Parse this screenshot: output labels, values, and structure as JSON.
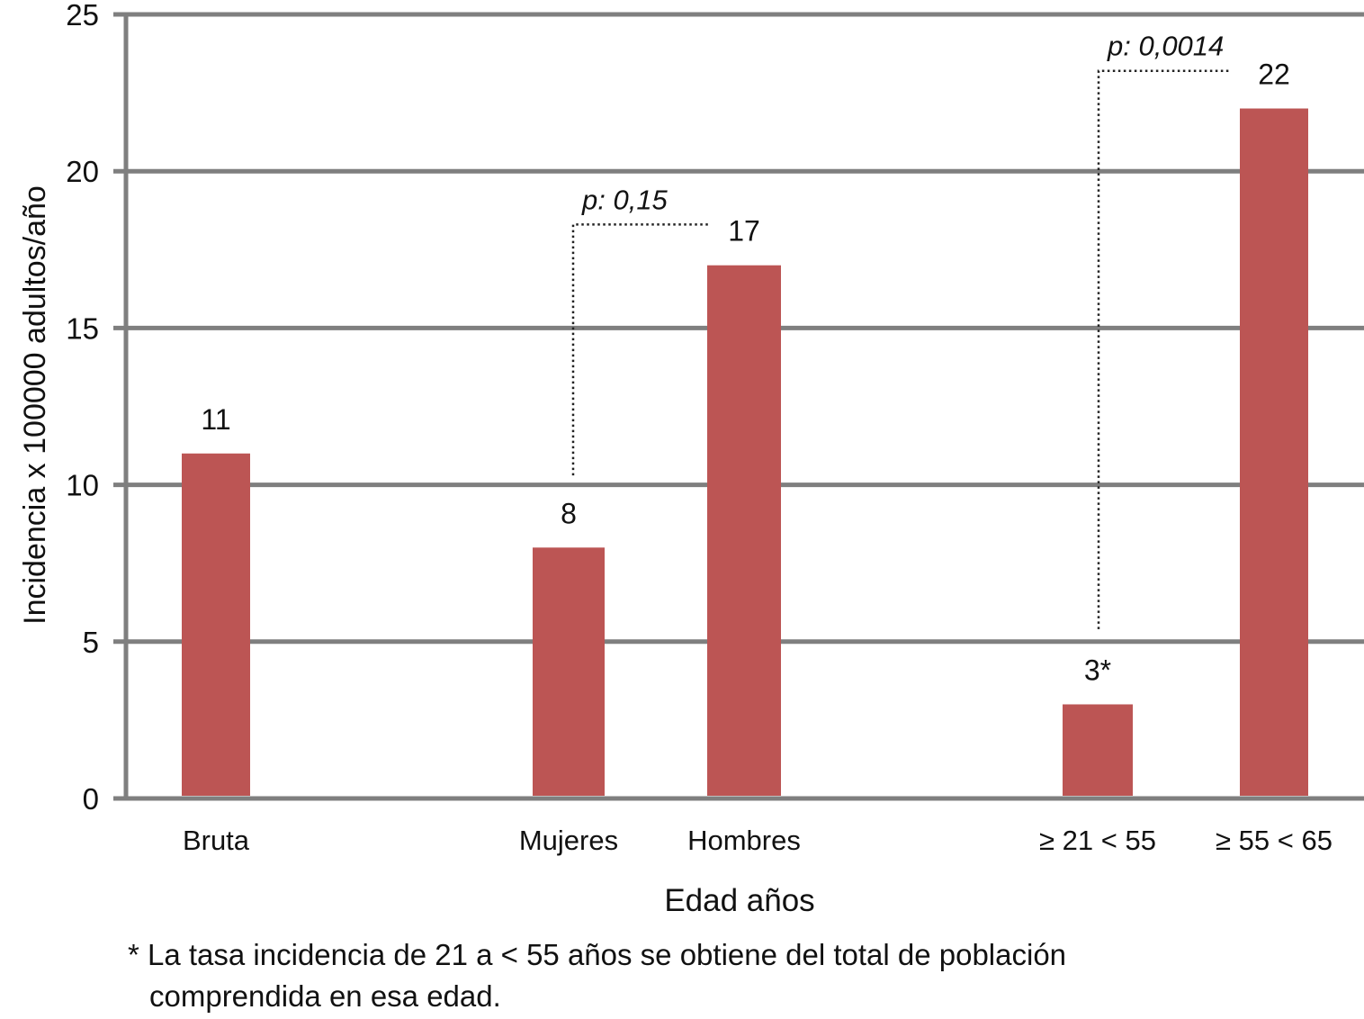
{
  "chart_data": {
    "type": "bar",
    "categories": [
      "Bruta",
      "Mujeres",
      "Hombres",
      "≥ 21 < 55",
      "≥ 55 < 65"
    ],
    "values": [
      11,
      8,
      17,
      3,
      22
    ],
    "value_labels": [
      "11",
      "8",
      "17",
      "3*",
      "22"
    ],
    "xlabel": "Edad años",
    "ylabel": "Incidencia x 100000 adultos/año",
    "ylim": [
      0,
      25
    ],
    "yticks": [
      0,
      5,
      10,
      15,
      20,
      25
    ],
    "grid": true,
    "bar_color": "#bc5554",
    "grid_color": "#7f7f7f",
    "annotations": [
      {
        "text": "p: 0,15",
        "from": "Mujeres",
        "to": "Hombres"
      },
      {
        "text": "p: 0,0014",
        "from": "≥ 21 < 55",
        "to": "≥ 55 < 65"
      }
    ]
  },
  "footnote": {
    "line1": "* La tasa incidencia de 21 a < 55 años se obtiene del total de población",
    "line2": "comprendida en esa edad."
  }
}
